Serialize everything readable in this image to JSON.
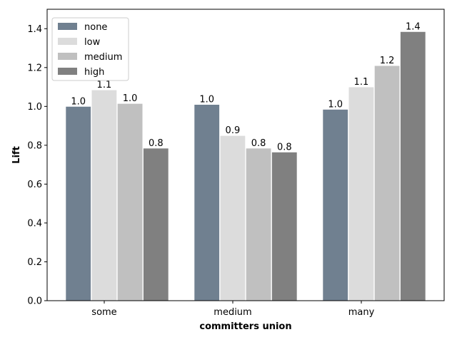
{
  "chart_data": {
    "type": "bar",
    "title": "",
    "xlabel": "committers union",
    "ylabel": "Lift",
    "ylim": [
      0,
      1.5
    ],
    "yticks": [
      0.0,
      0.2,
      0.4,
      0.6,
      0.8,
      1.0,
      1.2,
      1.4
    ],
    "ytick_labels": [
      "0.0",
      "0.2",
      "0.4",
      "0.6",
      "0.8",
      "1.0",
      "1.2",
      "1.4"
    ],
    "grid": false,
    "legend_position": "top-left",
    "categories": [
      "some",
      "medium",
      "many"
    ],
    "series": [
      {
        "name": "none",
        "color": "#708090",
        "values": [
          1.0,
          1.01,
          0.985
        ],
        "labels": [
          "1.0",
          "1.0",
          "1.0"
        ]
      },
      {
        "name": "low",
        "color": "#dcdcdc",
        "values": [
          1.085,
          0.85,
          1.1
        ],
        "labels": [
          "1.1",
          "0.9",
          "1.1"
        ]
      },
      {
        "name": "medium",
        "color": "#c0c0c0",
        "values": [
          1.015,
          0.785,
          1.21
        ],
        "labels": [
          "1.0",
          "0.8",
          "1.2"
        ]
      },
      {
        "name": "high",
        "color": "#808080",
        "values": [
          0.785,
          0.765,
          1.385
        ],
        "labels": [
          "0.8",
          "0.8",
          "1.4"
        ]
      }
    ]
  }
}
